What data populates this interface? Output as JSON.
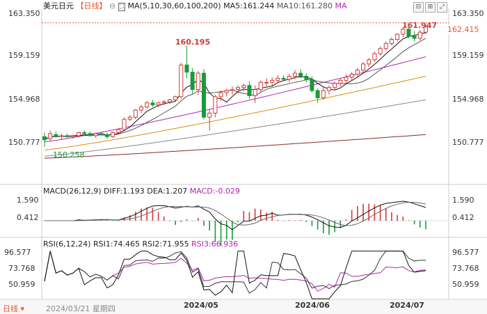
{
  "header": {
    "symbol": "美元日元",
    "period_tag": "【日线】",
    "ma_label": "MA(5,10,30,60,100,200)",
    "ma5_label": "MA5:161.244",
    "ma10_label": "MA10:161.280",
    "ma_more_label": "MA"
  },
  "macd_header": {
    "title": "MACD(26,12,9)",
    "diff": "DIFF:1.193",
    "dea": "DEA:1.207",
    "macd": "MACD:-0.029"
  },
  "rsi_header": {
    "title": "RSI(6,12,24)",
    "rsi1": "RSI1:74.465",
    "rsi2": "RSI2:71.955",
    "rsi3": "RSI3:66.936"
  },
  "footer": {
    "period": "日线",
    "date_info": "2024/03/21 星期四"
  },
  "annotations": {
    "high1": "160.195",
    "high2": "161.947",
    "low1": "150.258",
    "current": "162.415"
  },
  "colors": {
    "up": "#1a9a3a",
    "down": "#d23a3a",
    "ma5": "#111111",
    "ma10": "#555555",
    "ma30": "#b026b0",
    "ma60": "#d9900f",
    "ma100": "#888888",
    "ma200": "#8a2a2a",
    "rsi1": "#111111",
    "rsi2": "#333333",
    "rsi3": "#b026b0",
    "accent": "#e8562a"
  },
  "chart_data": [
    {
      "type": "candlestick",
      "title": "美元日元",
      "dates": [
        "2024/03/21",
        "2024/05",
        "2024/06",
        "2024/07"
      ],
      "y_ticks": [
        163.35,
        159.159,
        154.968,
        150.777
      ],
      "ylim": [
        148.5,
        164.5
      ],
      "ohlc": [
        [
          151.3,
          151.7,
          150.3,
          151.0
        ],
        [
          151.1,
          151.9,
          150.9,
          151.6
        ],
        [
          151.5,
          151.8,
          151.2,
          151.3
        ],
        [
          151.3,
          151.6,
          151.0,
          151.4
        ],
        [
          151.4,
          151.6,
          151.1,
          151.3
        ],
        [
          151.3,
          151.5,
          151.1,
          151.4
        ],
        [
          151.4,
          151.8,
          151.2,
          151.7
        ],
        [
          151.7,
          151.9,
          151.4,
          151.6
        ],
        [
          151.6,
          151.8,
          151.3,
          151.4
        ],
        [
          151.4,
          151.7,
          151.2,
          151.6
        ],
        [
          151.6,
          151.8,
          151.4,
          151.5
        ],
        [
          151.5,
          151.7,
          151.1,
          151.3
        ],
        [
          151.3,
          151.8,
          151.2,
          151.7
        ],
        [
          151.7,
          152.1,
          151.6,
          152.0
        ],
        [
          152.0,
          153.2,
          151.9,
          153.0
        ],
        [
          153.0,
          153.4,
          152.8,
          153.2
        ],
        [
          153.2,
          154.0,
          153.0,
          153.9
        ],
        [
          153.9,
          154.4,
          153.6,
          154.2
        ],
        [
          154.2,
          154.8,
          154.0,
          154.6
        ],
        [
          154.6,
          154.9,
          154.2,
          154.4
        ],
        [
          154.4,
          154.7,
          154.2,
          154.6
        ],
        [
          154.6,
          154.9,
          154.4,
          154.7
        ],
        [
          154.7,
          155.0,
          154.5,
          154.9
        ],
        [
          154.9,
          155.3,
          154.7,
          155.2
        ],
        [
          155.2,
          158.5,
          155.0,
          158.3
        ],
        [
          158.3,
          160.195,
          157.0,
          157.6
        ],
        [
          157.6,
          158.0,
          155.5,
          155.9
        ],
        [
          155.9,
          157.7,
          155.4,
          157.5
        ],
        [
          157.5,
          157.9,
          153.0,
          153.2
        ],
        [
          153.2,
          154.0,
          151.9,
          153.6
        ],
        [
          153.6,
          155.4,
          153.2,
          155.2
        ],
        [
          155.2,
          155.8,
          154.8,
          155.6
        ],
        [
          155.6,
          156.0,
          155.2,
          155.8
        ],
        [
          155.8,
          156.2,
          155.4,
          155.9
        ],
        [
          155.9,
          156.3,
          155.5,
          156.1
        ],
        [
          156.1,
          156.5,
          155.7,
          156.3
        ],
        [
          156.3,
          156.7,
          155.0,
          155.3
        ],
        [
          155.3,
          156.3,
          154.6,
          155.9
        ],
        [
          155.9,
          156.8,
          155.6,
          156.6
        ],
        [
          156.6,
          157.0,
          156.2,
          156.6
        ],
        [
          156.6,
          157.1,
          156.3,
          156.8
        ],
        [
          156.8,
          157.3,
          156.5,
          157.0
        ],
        [
          157.0,
          157.3,
          156.7,
          156.9
        ],
        [
          156.9,
          157.4,
          156.6,
          157.2
        ],
        [
          157.2,
          157.8,
          156.9,
          157.5
        ],
        [
          157.5,
          157.9,
          157.0,
          157.2
        ],
        [
          157.2,
          157.5,
          156.6,
          156.9
        ],
        [
          156.9,
          157.2,
          155.6,
          155.8
        ],
        [
          155.8,
          156.0,
          154.6,
          155.1
        ],
        [
          155.1,
          156.1,
          154.9,
          155.8
        ],
        [
          155.8,
          156.3,
          155.4,
          156.1
        ],
        [
          156.1,
          156.7,
          155.8,
          156.5
        ],
        [
          156.5,
          157.0,
          156.2,
          156.8
        ],
        [
          156.8,
          157.4,
          156.5,
          157.1
        ],
        [
          157.1,
          157.6,
          156.8,
          157.4
        ],
        [
          157.4,
          158.0,
          157.1,
          157.8
        ],
        [
          157.8,
          158.6,
          157.6,
          158.4
        ],
        [
          158.4,
          159.0,
          158.1,
          158.8
        ],
        [
          158.8,
          159.6,
          158.6,
          159.4
        ],
        [
          159.4,
          160.1,
          159.2,
          159.9
        ],
        [
          159.9,
          160.6,
          159.7,
          160.4
        ],
        [
          160.4,
          161.0,
          160.2,
          160.8
        ],
        [
          160.8,
          161.4,
          160.6,
          161.3
        ],
        [
          161.3,
          161.947,
          161.0,
          161.8
        ],
        [
          161.8,
          162.0,
          160.9,
          161.1
        ],
        [
          161.1,
          161.6,
          160.6,
          160.9
        ],
        [
          160.9,
          161.7,
          160.7,
          161.5
        ],
        [
          161.5,
          162.2,
          161.3,
          162.0
        ]
      ],
      "moving_averages": [
        {
          "name": "MA5",
          "value": 161.244
        },
        {
          "name": "MA10",
          "value": 161.28
        }
      ],
      "current_price": 162.415
    },
    {
      "type": "line",
      "title": "MACD(26,12,9)",
      "y_ticks": [
        1.59,
        0.412
      ],
      "series": [
        {
          "name": "DIFF",
          "last": 1.193
        },
        {
          "name": "DEA",
          "last": 1.207
        },
        {
          "name": "MACD",
          "last": -0.029
        }
      ]
    },
    {
      "type": "line",
      "title": "RSI(6,12,24)",
      "y_ticks": [
        96.577,
        73.768,
        50.959
      ],
      "series": [
        {
          "name": "RSI1",
          "last": 74.465
        },
        {
          "name": "RSI2",
          "last": 71.955
        },
        {
          "name": "RSI3",
          "last": 66.936
        }
      ]
    }
  ]
}
